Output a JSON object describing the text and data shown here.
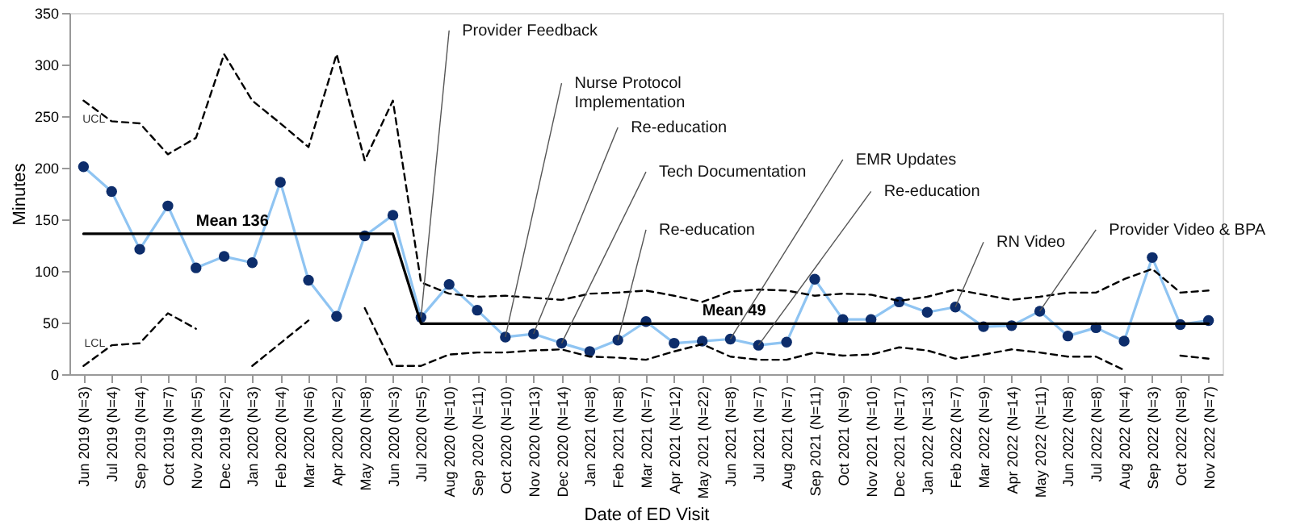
{
  "chart_data": {
    "type": "line",
    "xlabel": "Date of ED Visit",
    "ylabel": "Minutes",
    "categories": [
      "Jun 2019 (N=3)",
      "Jul 2019 (N=4)",
      "Sep 2019 (N=4)",
      "Oct 2019 (N=7)",
      "Nov 2019 (N=5)",
      "Dec 2019 (N=2)",
      "Jan 2020 (N=3)",
      "Feb 2020 (N=4)",
      "Mar 2020 (N=6)",
      "Apr 2020 (N=2)",
      "May 2020 (N=8)",
      "Jun 2020 (N=3)",
      "Jul 2020 (N=5)",
      "Aug 2020 (N=10)",
      "Sep 2020 (N=11)",
      "Oct 2020 (N=10)",
      "Nov 2020 (N=13)",
      "Dec 2020 (N=14)",
      "Jan 2021 (N=8)",
      "Feb 2021 (N=8)",
      "Mar 2021 (N=7)",
      "Apr 2021 (N=12)",
      "May 2021 (N=22)",
      "Jun 2021 (N=8)",
      "Jul 2021 (N=7)",
      "Aug 2021 (N=7)",
      "Sep 2021 (N=11)",
      "Oct 2021 (N=9)",
      "Nov 2021 (N=10)",
      "Dec 2021 (N=17)",
      "Jan 2022 (N=13)",
      "Feb 2022 (N=7)",
      "Mar 2022 (N=9)",
      "Apr 2022 (N=14)",
      "May 2022 (N=11)",
      "Jun 2022 (N=8)",
      "Jul 2022 (N=8)",
      "Aug 2022 (N=4)",
      "Sep 2022 (N=3)",
      "Oct 2022 (N=8)",
      "Nov 2022 (N=7)"
    ],
    "series": [
      {
        "color": "#8fc4f2",
        "marker": "circle",
        "line_style": "solid",
        "colors": [
          "#0d2d6b",
          "#0d2d6b",
          "#0d2d6b",
          "#0d2d6b",
          "#0d2d6b",
          "#0d2d6b",
          "#0d2d6b",
          "#0d2d6b",
          "#0d2d6b",
          "#0d2d6b",
          "#0d2d6b",
          "#0d2d6b",
          "#0d2d6b",
          "#0d2d6b",
          "#0d2d6b",
          "#0d2d6b",
          "#0d2d6b",
          "#0d2d6b",
          "#0d2d6b",
          "#0d2d6b",
          "#0d2d6b",
          "#0d2d6b",
          "#0d2d6b",
          "#0d2d6b",
          "#0d2d6b",
          "#0d2d6b",
          "#0d2d6b",
          "#0d2d6b",
          "#0d2d6b",
          "#0d2d6b",
          "#0d2d6b",
          "#0d2d6b",
          "#0d2d6b",
          "#0d2d6b",
          "#0d2d6b",
          "#0d2d6b",
          "#0d2d6b",
          "#0d2d6b",
          "#0d2d6b",
          "#0d2d6b",
          "#0d2d6b"
        ],
        "values": [
          201,
          177,
          121,
          163,
          103,
          114,
          108,
          186,
          91,
          56,
          134,
          154,
          55,
          87,
          62,
          36,
          39,
          30,
          22,
          33,
          51,
          30,
          32,
          34,
          28,
          31,
          92,
          53,
          53,
          70,
          60,
          65,
          46,
          47,
          61,
          37,
          45,
          32,
          113,
          48,
          52
        ]
      },
      {
        "color": "#000000",
        "marker": "none",
        "line_style": "solid",
        "values": [
          136,
          136,
          136,
          136,
          136,
          136,
          136,
          136,
          136,
          136,
          136,
          136,
          49,
          49,
          49,
          49,
          49,
          49,
          49,
          49,
          49,
          49,
          49,
          49,
          49,
          49,
          49,
          49,
          49,
          49,
          49,
          49,
          49,
          49,
          49,
          49,
          49,
          49,
          49,
          49,
          49
        ]
      },
      {
        "name": "UCL",
        "color": "#000000",
        "marker": "none",
        "line_style": "dashed",
        "values": [
          265,
          245,
          243,
          213,
          229,
          310,
          265,
          243,
          220,
          310,
          207,
          265,
          89,
          78,
          75,
          76,
          74,
          72,
          78,
          79,
          81,
          76,
          70,
          80,
          82,
          81,
          76,
          78,
          77,
          71,
          75,
          82,
          77,
          72,
          75,
          79,
          79,
          92,
          102,
          79,
          81
        ]
      },
      {
        "name": "LCL",
        "color": "#000000",
        "marker": "none",
        "line_style": "dashed",
        "values": [
          8,
          28,
          30,
          59,
          44,
          null,
          8,
          30,
          52,
          null,
          64,
          8,
          8,
          19,
          21,
          21,
          23,
          24,
          17,
          16,
          14,
          22,
          29,
          17,
          14,
          14,
          21,
          18,
          19,
          26,
          23,
          15,
          19,
          24,
          21,
          17,
          17,
          4,
          null,
          18,
          15
        ]
      }
    ],
    "ylim": [
      0,
      350
    ],
    "yticks": [
      0,
      50,
      100,
      150,
      200,
      250,
      300,
      350
    ],
    "grid": false,
    "legend": false,
    "annotations": [
      {
        "text": "Mean 136",
        "x": "Nov 2019 (N=5)",
        "y": 136
      },
      {
        "text": "Mean 49",
        "x": "May 2021 (N=22)",
        "y": 49
      },
      {
        "text": "Provider Feedback",
        "x": "Jul 2020 (N=5)",
        "y": 55
      },
      {
        "text": "Nurse Protocol Implementation",
        "x": "Oct 2020 (N=10)",
        "y": 36
      },
      {
        "text": "Re-education",
        "x": "Nov 2020 (N=13)",
        "y": 39
      },
      {
        "text": "Tech Documentation",
        "x": "Dec 2020 (N=14)",
        "y": 30
      },
      {
        "text": "Re-education",
        "x": "Feb 2021 (N=8)",
        "y": 33
      },
      {
        "text": "EMR Updates",
        "x": "Jun 2021 (N=8)",
        "y": 34
      },
      {
        "text": "Re-education",
        "x": "Jul 2021 (N=7)",
        "y": 28
      },
      {
        "text": "RN Video",
        "x": "Feb 2022 (N=7)",
        "y": 65
      },
      {
        "text": "Provider Video & BPA",
        "x": "May 2022 (N=11)",
        "y": 61
      }
    ]
  }
}
